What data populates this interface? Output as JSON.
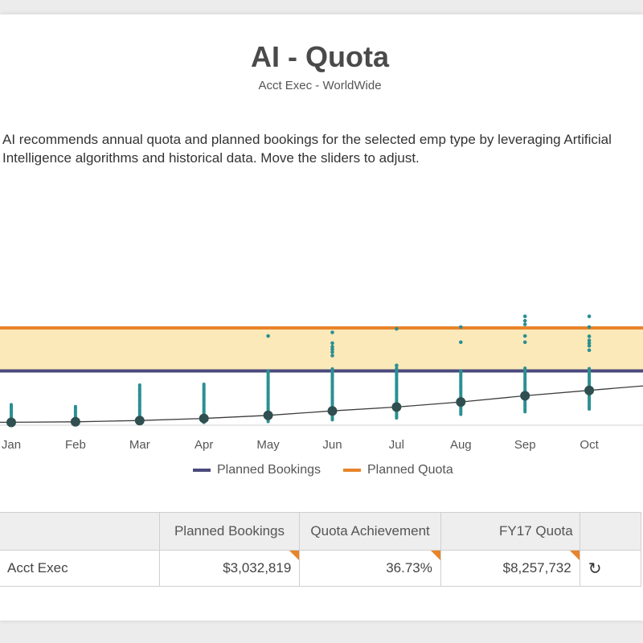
{
  "header": {
    "title": "AI - Quota",
    "subtitle": "Acct Exec - WorldWide"
  },
  "description": "AI recommends annual quota and planned bookings for the selected emp type by leveraging Artificial Intelligence algorithms and historical data. Move the sliders to adjust.",
  "colors": {
    "quota": "#e8842a",
    "bookings": "#4b4a7c",
    "band": "#fbe9b9",
    "dots": "#2a8f92",
    "trend": "#3d3d3d",
    "marker": "#2f4f50"
  },
  "chart_data": {
    "type": "line",
    "categories": [
      "Jan",
      "Feb",
      "Mar",
      "Apr",
      "May",
      "Jun",
      "Jul",
      "Aug",
      "Sep",
      "Oct"
    ],
    "series": [
      {
        "name": "Planned Bookings",
        "values": [
          0.16,
          0.19,
          0.26,
          0.38,
          0.55,
          0.8,
          1.02,
          1.3,
          1.65,
          1.95
        ]
      },
      {
        "name": "Planned Quota",
        "constant": 5.45
      }
    ],
    "bookings_level": 3.04,
    "spread_low": [
      0.05,
      0.05,
      0.1,
      0.15,
      0.2,
      0.3,
      0.4,
      0.6,
      0.75,
      0.9
    ],
    "spread_high": [
      1.2,
      1.05,
      2.25,
      2.3,
      3.05,
      3.2,
      3.2,
      3.05,
      3.2,
      3.2
    ],
    "outliers": [
      [],
      [],
      [],
      [],
      [
        5.0
      ],
      [
        5.2,
        4.6,
        4.4,
        4.25,
        4.1,
        3.9
      ],
      [
        5.4,
        3.35
      ],
      [
        5.5,
        4.65
      ],
      [
        6.1,
        5.85,
        5.65,
        5.0,
        4.65
      ],
      [
        6.1,
        5.5,
        4.98,
        4.75,
        4.6,
        4.45,
        4.2
      ]
    ],
    "xlabel": "",
    "ylabel": "",
    "ylim": [
      0,
      6.5
    ],
    "grid": false,
    "legend_position": "bottom"
  },
  "legend": {
    "bookings_label": "Planned Bookings",
    "quota_label": "Planned Quota"
  },
  "table": {
    "headers": [
      "",
      "Planned Bookings",
      "Quota Achievement",
      "FY17 Quota",
      ""
    ],
    "row": {
      "name": "Acct Exec",
      "planned_bookings": "$3,032,819",
      "quota_achievement": "36.73%",
      "fy17_quota": "$8,257,732",
      "refresh_icon": "refresh-icon"
    }
  }
}
